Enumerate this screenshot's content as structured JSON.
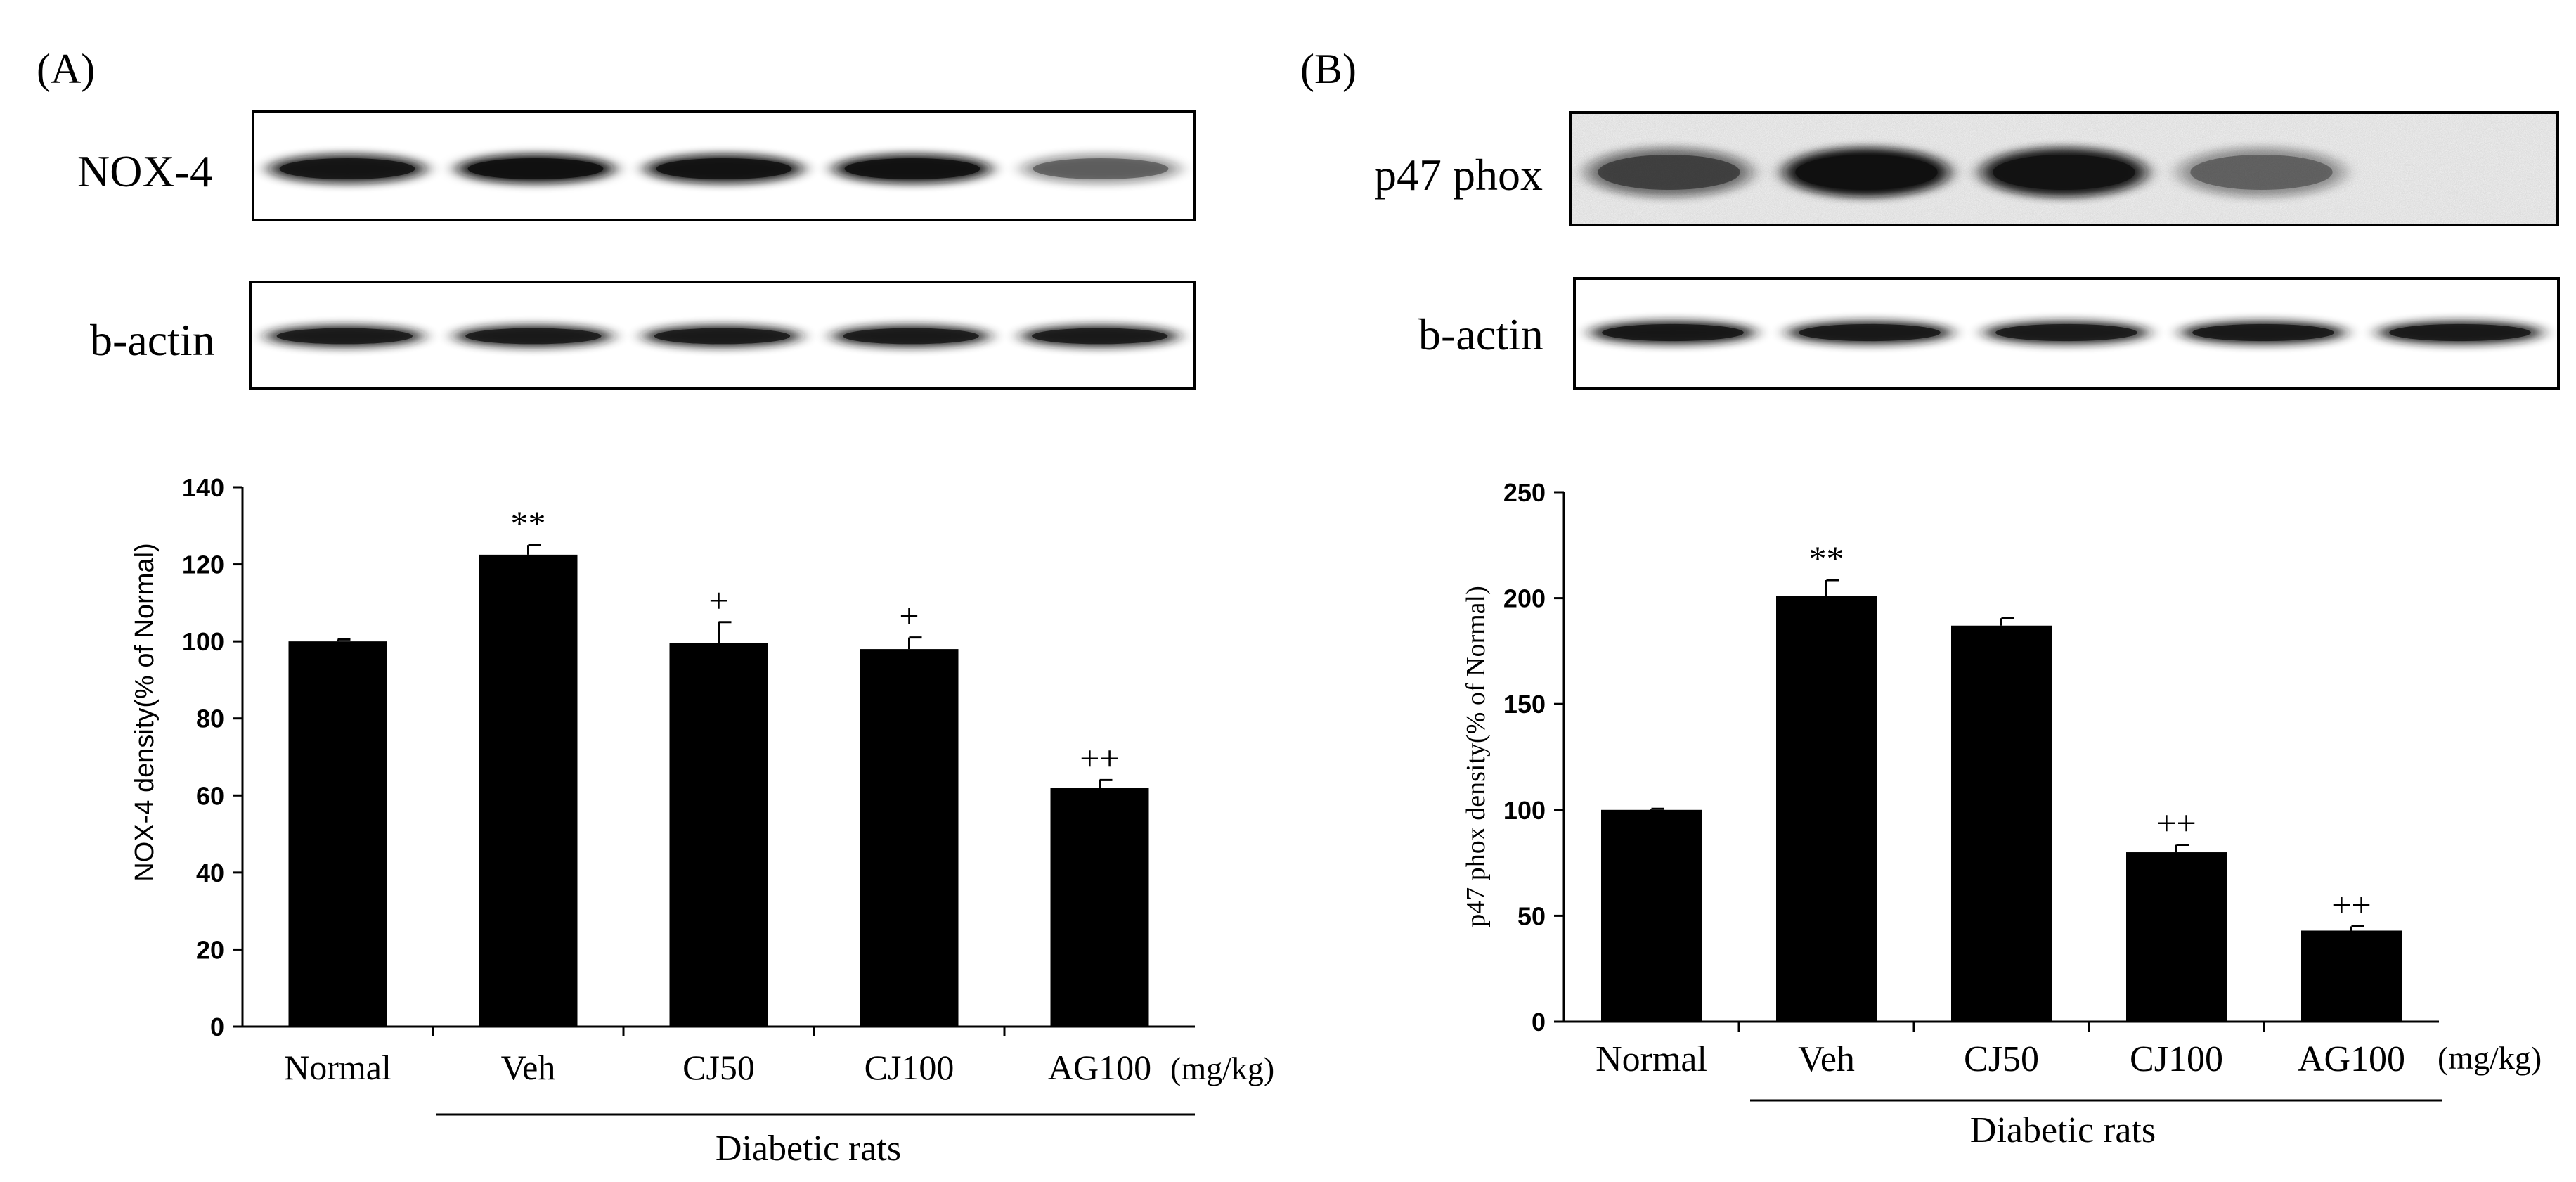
{
  "colors": {
    "bar": "#000000",
    "axis": "#000000",
    "background": "#ffffff",
    "blot_gray": "#8a8a8a"
  },
  "chart_data": [
    {
      "panel_label": "(A)",
      "type": "bar",
      "blot_labels": [
        "NOX-4",
        "b-actin"
      ],
      "categories": [
        "Normal",
        "Veh",
        "CJ50",
        "CJ100",
        "AG100"
      ],
      "values": [
        100,
        122.5,
        99.5,
        98,
        62
      ],
      "errors": [
        0.5,
        2.5,
        5.5,
        3,
        2
      ],
      "annotations": [
        "",
        "**",
        "+",
        "+",
        "++"
      ],
      "unit_label": "(mg/kg)",
      "group_label": "Diabetic rats",
      "ylabel": "NOX-4 density(% of Normal)",
      "ylim": [
        0,
        140
      ],
      "yticks": [
        "0",
        "20",
        "40",
        "60",
        "80",
        "100",
        "120",
        "140"
      ],
      "blot_intensity": {
        "top": [
          0.9,
          1.0,
          0.95,
          0.97,
          0.45
        ],
        "bottom": [
          0.9,
          0.9,
          0.9,
          0.9,
          0.9
        ]
      }
    },
    {
      "panel_label": "(B)",
      "type": "bar",
      "blot_labels": [
        "p47 phox",
        "b-actin"
      ],
      "categories": [
        "Normal",
        "Veh",
        "CJ50",
        "CJ100",
        "AG100"
      ],
      "values": [
        100,
        201,
        187,
        80,
        43
      ],
      "errors": [
        0.5,
        7.5,
        3.5,
        3.5,
        2
      ],
      "annotations": [
        "",
        "**",
        "",
        "++",
        "++"
      ],
      "unit_label": "(mg/kg)",
      "group_label": "Diabetic rats",
      "ylabel": "p47 phox density(% of Normal)",
      "ylim": [
        0,
        250
      ],
      "yticks": [
        "0",
        "50",
        "100",
        "150",
        "200",
        "250"
      ],
      "blot_intensity": {
        "top": [
          0.55,
          1.0,
          0.95,
          0.4,
          0.0
        ],
        "bottom": [
          0.95,
          0.92,
          0.9,
          0.92,
          0.92
        ]
      }
    }
  ]
}
